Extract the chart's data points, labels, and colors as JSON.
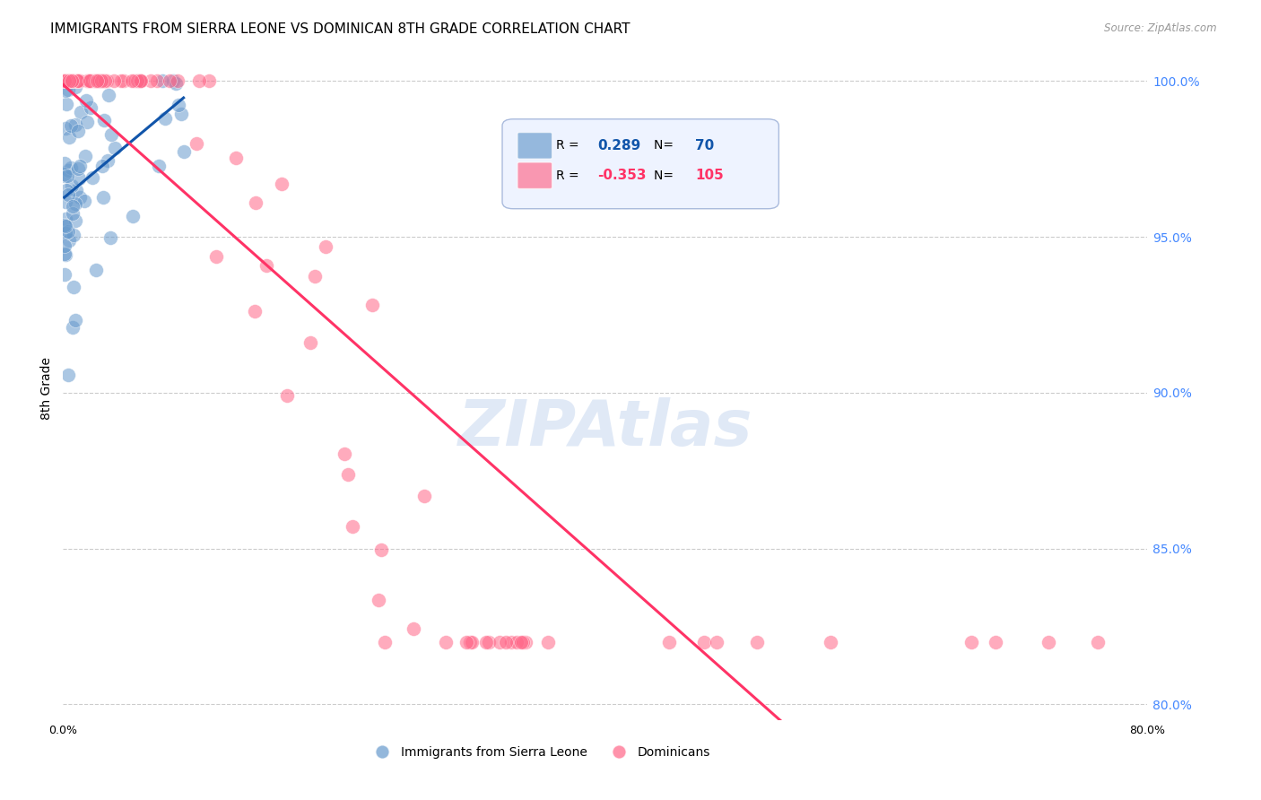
{
  "title": "IMMIGRANTS FROM SIERRA LEONE VS DOMINICAN 8TH GRADE CORRELATION CHART",
  "source": "Source: ZipAtlas.com",
  "ylabel_left": "8th Grade",
  "x_min": 0.0,
  "x_max": 0.8,
  "y_min": 0.795,
  "y_max": 1.008,
  "right_yticks": [
    1.0,
    0.95,
    0.9,
    0.85,
    0.8
  ],
  "right_yticklabels": [
    "100.0%",
    "95.0%",
    "90.0%",
    "85.0%",
    "80.0%"
  ],
  "bottom_xticks": [
    0.0,
    0.1,
    0.2,
    0.3,
    0.4,
    0.5,
    0.6,
    0.7,
    0.8
  ],
  "bottom_xticklabels": [
    "0.0%",
    "",
    "",
    "",
    "",
    "",
    "",
    "",
    "80.0%"
  ],
  "sierra_leone_R": 0.289,
  "sierra_leone_N": 70,
  "dominican_R": -0.353,
  "dominican_N": 105,
  "sierra_leone_color": "#6699CC",
  "dominican_color": "#FF6688",
  "sierra_leone_line_color": "#1155AA",
  "dominican_line_color": "#FF3366",
  "legend_box_color": "#EEF3FF",
  "legend_box_edge": "#AABBDD",
  "watermark_color": "#C8D8F0",
  "background_color": "#FFFFFF",
  "grid_color": "#CCCCCC",
  "title_fontsize": 11,
  "axis_label_fontsize": 10,
  "tick_fontsize": 9,
  "right_tick_color": "#4488FF"
}
